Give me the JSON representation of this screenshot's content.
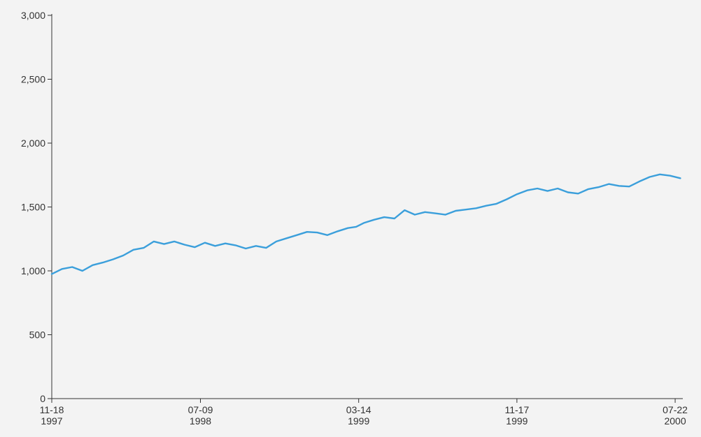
{
  "chart_data": {
    "type": "line",
    "title": "",
    "xlabel": "",
    "ylabel": "",
    "ylim": [
      0,
      3000
    ],
    "xlim": [
      "1997-11-18",
      "2000-08-03"
    ],
    "grid": false,
    "legend": "none",
    "colors": {
      "line": "#3b9fdb",
      "axis": "#333333",
      "background": "#f3f3f3"
    },
    "y_ticks": [
      {
        "value": 0,
        "label": "0"
      },
      {
        "value": 500,
        "label": "500"
      },
      {
        "value": 1000,
        "label": "1,000"
      },
      {
        "value": 1500,
        "label": "1,500"
      },
      {
        "value": 2000,
        "label": "2,000"
      },
      {
        "value": 2500,
        "label": "2,500"
      },
      {
        "value": 3000,
        "label": "3,000"
      }
    ],
    "x_ticks": [
      {
        "date": "1997-11-18",
        "line1": "11-18",
        "line2": "1997"
      },
      {
        "date": "1998-07-09",
        "line1": "07-09",
        "line2": "1998"
      },
      {
        "date": "1999-03-14",
        "line1": "03-14",
        "line2": "1999"
      },
      {
        "date": "1999-11-17",
        "line1": "11-17",
        "line2": "1999"
      },
      {
        "date": "2000-07-22",
        "line1": "07-22",
        "line2": "2000"
      }
    ],
    "series": [
      {
        "x": [
          "1997-11-18",
          "1997-12-04",
          "1997-12-20",
          "1998-01-05",
          "1998-01-21",
          "1998-02-06",
          "1998-02-22",
          "1998-03-10",
          "1998-03-26",
          "1998-04-11",
          "1998-04-27",
          "1998-05-13",
          "1998-05-29",
          "1998-06-14",
          "1998-06-30",
          "1998-07-16",
          "1998-08-01",
          "1998-08-17",
          "1998-09-02",
          "1998-09-18",
          "1998-10-04",
          "1998-10-20",
          "1998-11-05",
          "1998-11-21",
          "1998-12-07",
          "1998-12-23",
          "1999-01-08",
          "1999-01-24",
          "1999-02-09",
          "1999-02-25",
          "1999-03-10",
          "1999-03-22",
          "1999-04-07",
          "1999-04-23",
          "1999-05-09",
          "1999-05-25",
          "1999-06-10",
          "1999-06-26",
          "1999-07-12",
          "1999-07-28",
          "1999-08-13",
          "1999-08-29",
          "1999-09-14",
          "1999-09-30",
          "1999-10-16",
          "1999-11-01",
          "1999-11-17",
          "1999-12-03",
          "1999-12-19",
          "2000-01-04",
          "2000-01-20",
          "2000-02-05",
          "2000-02-21",
          "2000-03-08",
          "2000-03-24",
          "2000-04-09",
          "2000-04-25",
          "2000-05-11",
          "2000-05-27",
          "2000-06-12",
          "2000-06-28",
          "2000-07-14",
          "2000-07-30"
        ],
        "y": [
          975,
          1015,
          1030,
          1000,
          1045,
          1065,
          1090,
          1120,
          1165,
          1180,
          1230,
          1210,
          1230,
          1205,
          1185,
          1220,
          1195,
          1215,
          1200,
          1175,
          1195,
          1180,
          1230,
          1255,
          1280,
          1305,
          1300,
          1280,
          1310,
          1335,
          1345,
          1375,
          1400,
          1420,
          1410,
          1475,
          1440,
          1460,
          1450,
          1440,
          1470,
          1480,
          1490,
          1510,
          1525,
          1560,
          1600,
          1630,
          1645,
          1625,
          1645,
          1615,
          1605,
          1640,
          1655,
          1680,
          1665,
          1660,
          1700,
          1735,
          1755,
          1745,
          1725
        ]
      }
    ]
  }
}
